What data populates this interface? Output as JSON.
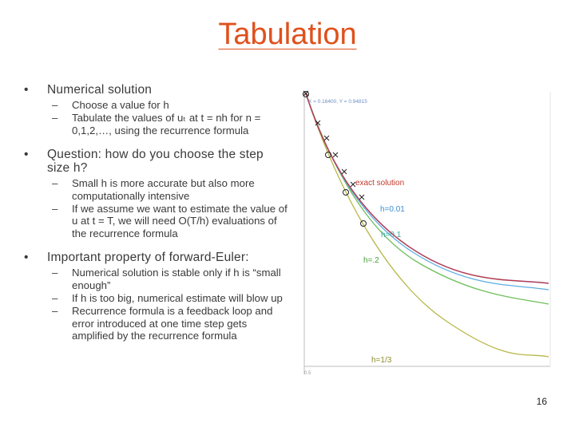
{
  "title": "Tabulation",
  "bullets": [
    {
      "text": "Numerical solution",
      "subs": [
        "Choose a value for h",
        "Tabulate the values of uₜ at t = nh for n = 0,1,2,…, using the recurrence formula"
      ]
    },
    {
      "text": "Question: how do you choose the step size h?",
      "subs": [
        "Small h is more accurate but also more computationally intensive",
        "If we assume we want to estimate the value of u at t = T, we will need O(T/h) evaluations of the recurrence formula"
      ]
    },
    {
      "text": "Important property of forward-Euler:",
      "subs": [
        "Numerical solution is stable only if h is “small enough”",
        "If h is too big, numerical estimate will blow up",
        "Recurrence formula is a feedback loop and error introduced at one time step gets amplified by the recurrence formula"
      ]
    }
  ],
  "figure": {
    "readout": "X = 0.16400, Y = 0.94815",
    "corner_label": "0.5",
    "labels": {
      "exact": "exact solution",
      "h001": "h=0.01",
      "h01": "h=0.1",
      "h2": "h=.2",
      "h13": "h=1/3"
    },
    "colors": {
      "exact": "#c0392b",
      "h001": "#9b59b6",
      "h01": "#5dade2",
      "h2": "#6fbf5a",
      "h13": "#b8b84a",
      "axis": "#bdbdbd"
    }
  },
  "page_number": "16"
}
